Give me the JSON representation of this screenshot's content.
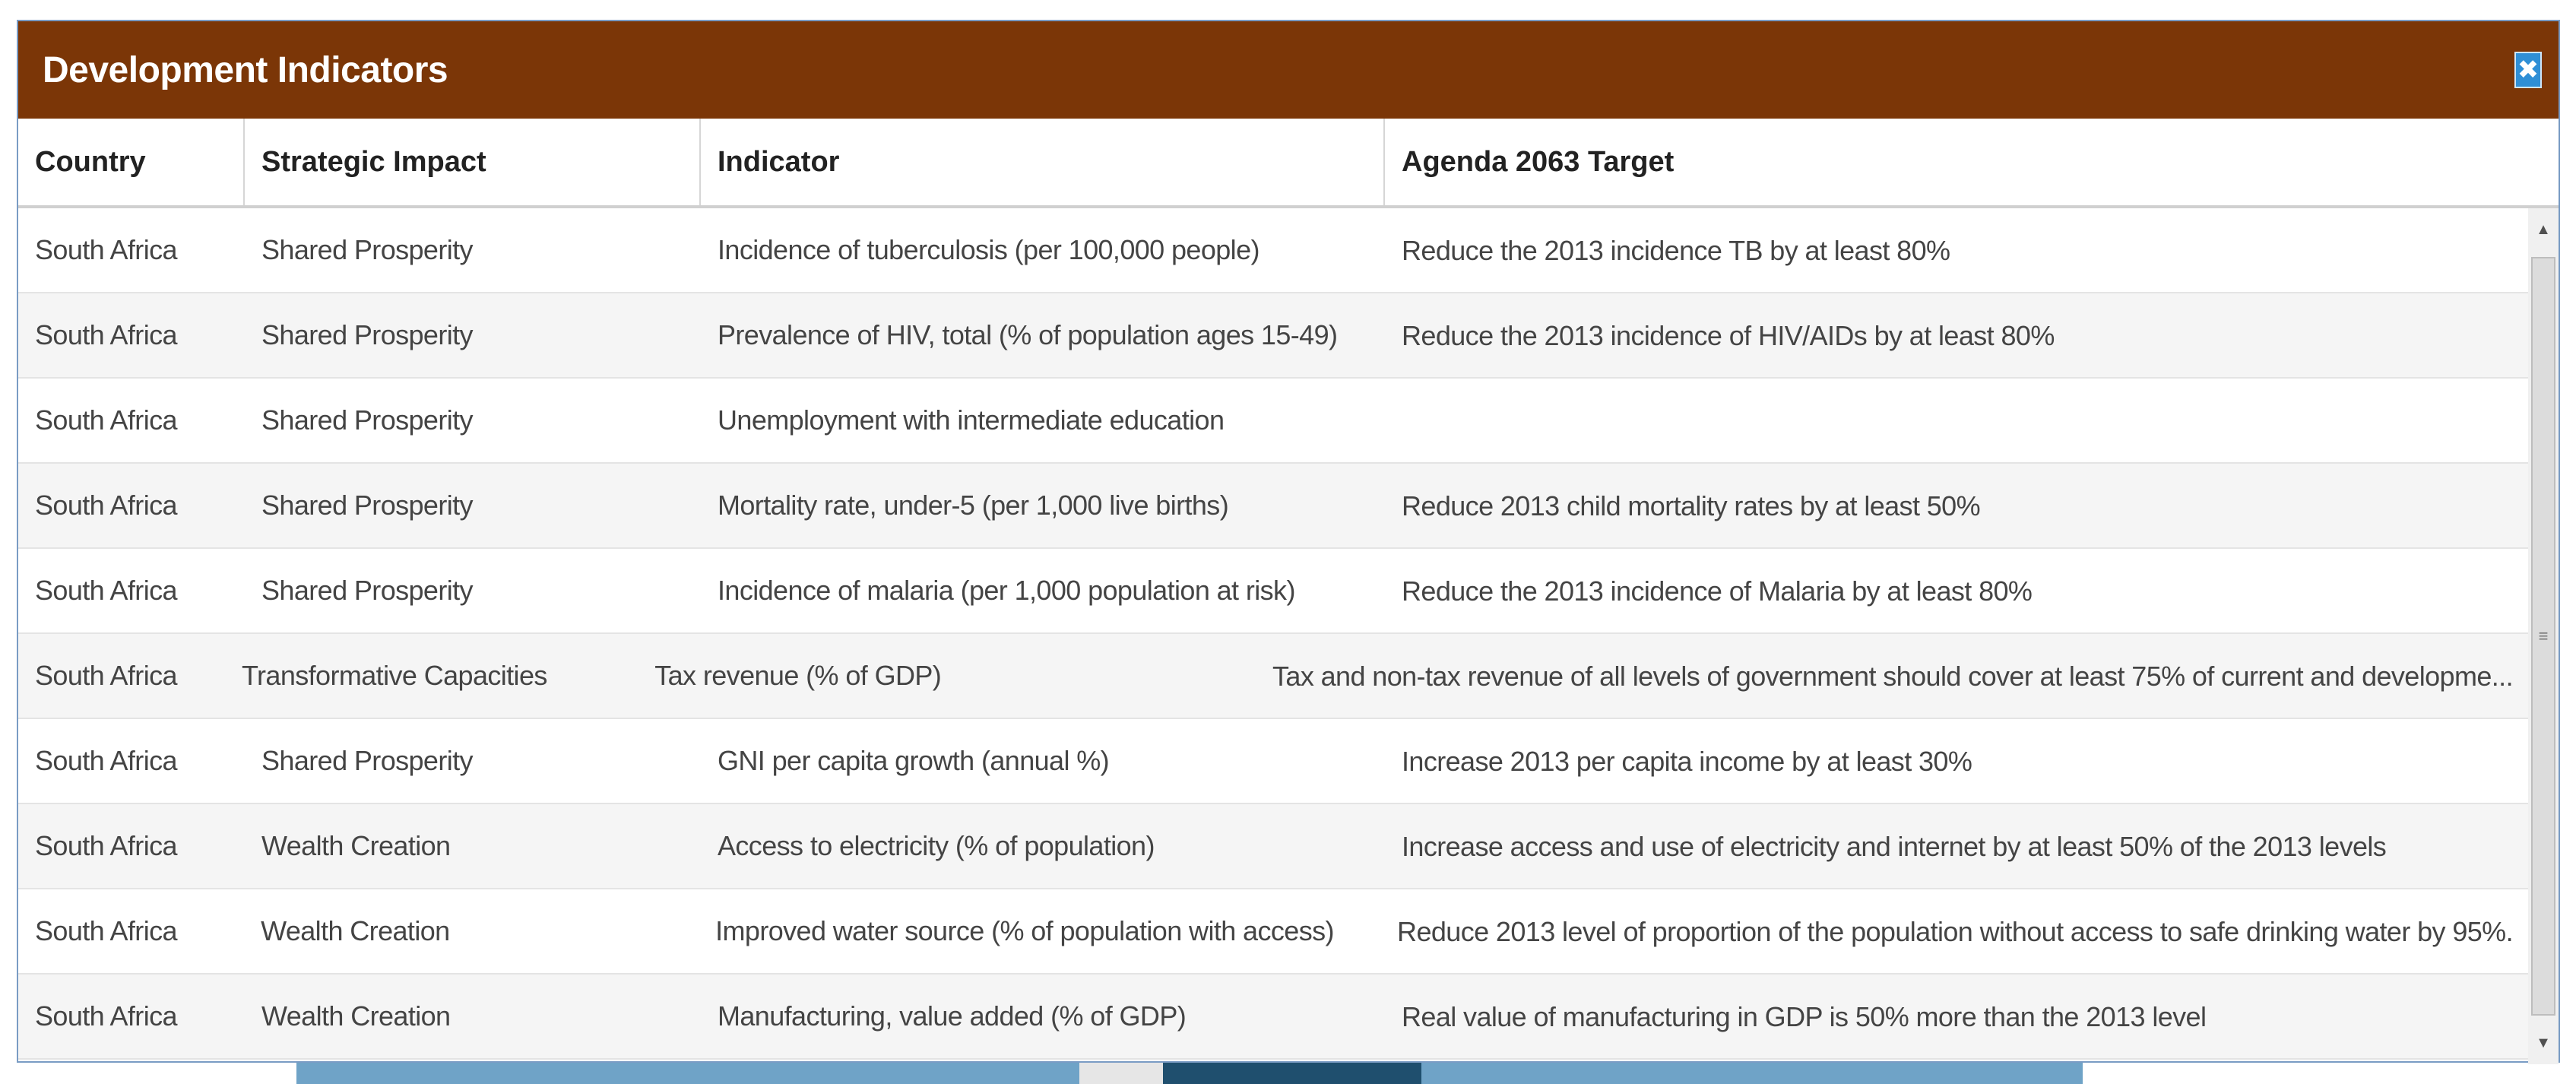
{
  "modal": {
    "title": "Development Indicators",
    "close_symbol": "✖"
  },
  "table": {
    "headers": [
      "Country",
      "Strategic Impact",
      "Indicator",
      "Agenda 2063 Target"
    ],
    "rows": [
      [
        "South Africa",
        "Shared Prosperity",
        "Incidence of tuberculosis (per 100,000 people)",
        "Reduce the 2013 incidence TB by at least 80%"
      ],
      [
        "South Africa",
        "Shared Prosperity",
        "Prevalence of HIV, total (% of population ages 15-49)",
        "Reduce the 2013 incidence of HIV/AIDs by at least 80%"
      ],
      [
        "South Africa",
        "Shared Prosperity",
        "Unemployment with intermediate education",
        ""
      ],
      [
        "South Africa",
        "Shared Prosperity",
        "Mortality rate, under-5 (per 1,000 live births)",
        "Reduce 2013 child mortality rates by at least 50%"
      ],
      [
        "South Africa",
        "Shared Prosperity",
        "Incidence of malaria (per 1,000 population at risk)",
        "Reduce the 2013 incidence of Malaria by at least 80%"
      ],
      [
        "South Africa",
        "Transformative Capacities",
        "Tax revenue (% of GDP)",
        "Tax and non-tax revenue of all levels of government should cover at least 75% of current and developme..."
      ],
      [
        "South Africa",
        "Shared Prosperity",
        "GNI per capita growth (annual %)",
        "Increase 2013 per capita income by at least 30%"
      ],
      [
        "South Africa",
        "Wealth Creation",
        "Access to electricity (% of population)",
        "Increase access and use of electricity and internet by at least 50% of the 2013 levels"
      ],
      [
        "South Africa",
        "Wealth Creation",
        "Improved water source (% of population with access)",
        "Reduce 2013 level of proportion of the population without access to safe drinking water by 95%."
      ],
      [
        "South Africa",
        "Wealth Creation",
        "Manufacturing, value added (% of GDP)",
        "Real value of manufacturing in GDP is 50% more than the 2013 level"
      ]
    ]
  },
  "scrollbar": {
    "up_symbol": "▲",
    "down_symbol": "▼",
    "thumb_grip": "≡"
  },
  "colors": {
    "titlebar": "#7b3607",
    "close_button": "#2f8fd6"
  }
}
